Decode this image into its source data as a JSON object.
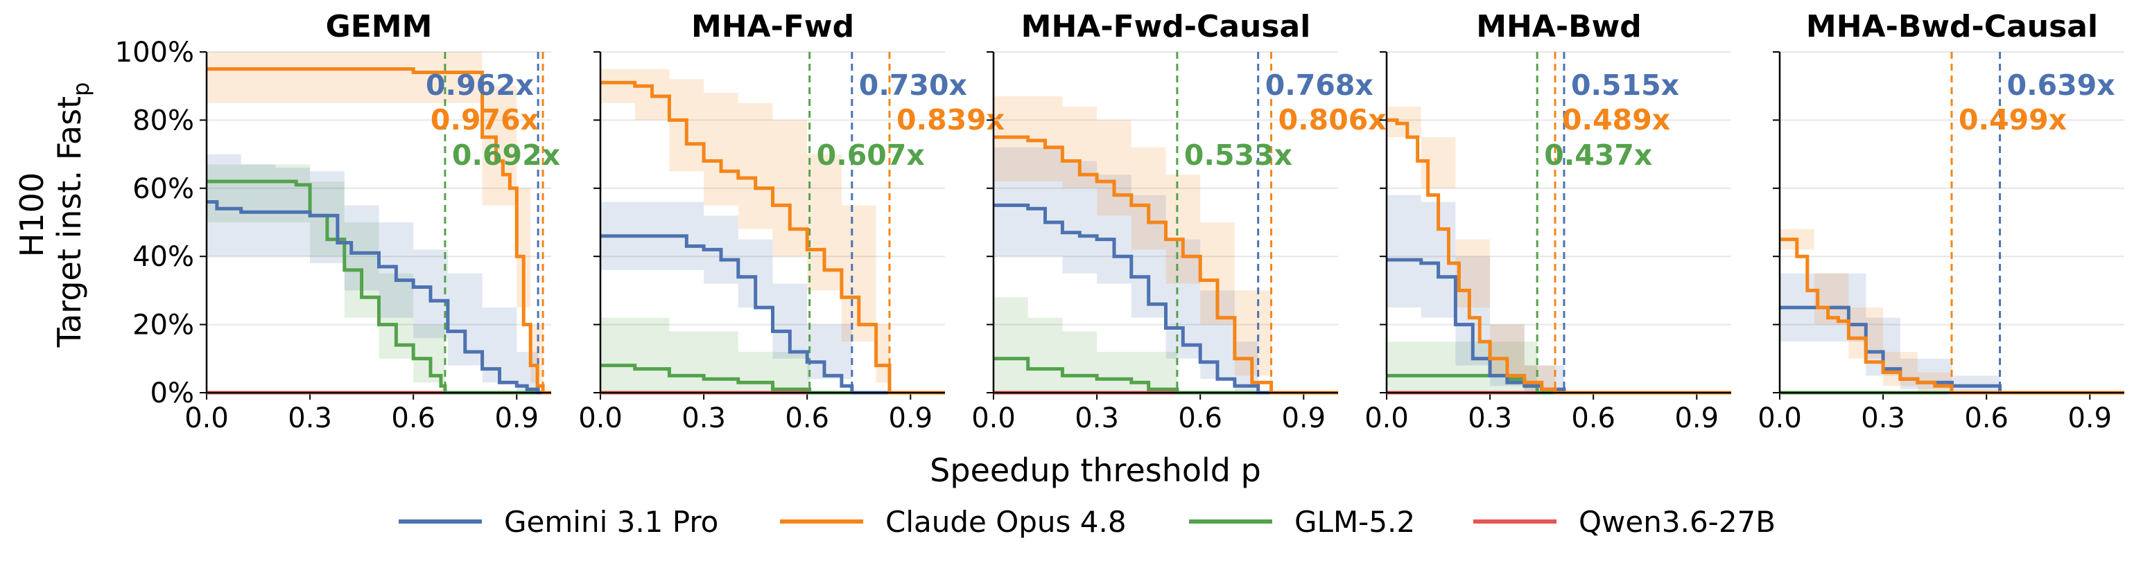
{
  "figure": {
    "ylabel_line1": "H100",
    "ylabel_line2_main": "Target inst. Fast",
    "ylabel_line2_sub": "p",
    "xlabel": "Speedup threshold p"
  },
  "series": [
    {
      "key": "gemini",
      "name": "Gemini 3.1 Pro",
      "color": "#4c72b0"
    },
    {
      "key": "claude",
      "name": "Claude Opus 4.8",
      "color": "#f58518"
    },
    {
      "key": "glm",
      "name": "GLM-5.2",
      "color": "#54a24b"
    },
    {
      "key": "qwen",
      "name": "Qwen3.6-27B",
      "color": "#e45756"
    }
  ],
  "chart_data": [
    {
      "type": "line",
      "title": "GEMM",
      "xlim": [
        0,
        1
      ],
      "ylim": [
        0,
        100
      ],
      "xticks": [
        "0.0",
        "0.3",
        "0.6",
        "0.9"
      ],
      "yticks": [
        "0%",
        "20%",
        "40%",
        "60%",
        "80%",
        "100%"
      ],
      "grid": "y",
      "thresholds": [
        {
          "series": "gemini",
          "x": 0.962,
          "label": "0.962x"
        },
        {
          "series": "claude",
          "x": 0.976,
          "label": "0.976x"
        },
        {
          "series": "glm",
          "x": 0.692,
          "label": "0.692x"
        }
      ],
      "lines": {
        "gemini": {
          "x": [
            0,
            0.03,
            0.1,
            0.2,
            0.3,
            0.38,
            0.42,
            0.5,
            0.55,
            0.6,
            0.65,
            0.7,
            0.75,
            0.8,
            0.85,
            0.9,
            0.93,
            0.962
          ],
          "y": [
            56,
            54,
            53,
            53,
            52,
            44,
            41,
            37,
            33,
            31,
            27,
            18,
            12,
            7,
            3,
            2,
            1,
            0
          ]
        },
        "claude": {
          "x": [
            0,
            0.6,
            0.8,
            0.84,
            0.86,
            0.88,
            0.9,
            0.92,
            0.94,
            0.96,
            0.976
          ],
          "y": [
            95,
            94,
            75,
            68,
            64,
            60,
            40,
            20,
            8,
            2,
            0
          ]
        },
        "glm": {
          "x": [
            0,
            0.26,
            0.3,
            0.35,
            0.4,
            0.45,
            0.5,
            0.55,
            0.6,
            0.65,
            0.68,
            0.692
          ],
          "y": [
            62,
            61,
            52,
            45,
            36,
            28,
            20,
            14,
            10,
            5,
            2,
            0
          ]
        },
        "qwen": {
          "x": [
            0,
            1
          ],
          "y": [
            0,
            0
          ]
        }
      },
      "bands": {
        "gemini": {
          "x": [
            0,
            0.1,
            0.2,
            0.3,
            0.4,
            0.5,
            0.6,
            0.7,
            0.8,
            0.9,
            0.962
          ],
          "low": [
            40,
            40,
            40,
            38,
            30,
            22,
            16,
            8,
            3,
            0,
            0
          ],
          "high": [
            70,
            67,
            66,
            65,
            55,
            50,
            42,
            35,
            25,
            12,
            2
          ]
        },
        "claude": {
          "x": [
            0,
            0.6,
            0.8,
            0.9,
            0.94,
            0.976
          ],
          "low": [
            85,
            85,
            55,
            25,
            3,
            0
          ],
          "high": [
            100,
            100,
            90,
            60,
            20,
            2
          ]
        },
        "glm": {
          "x": [
            0,
            0.26,
            0.3,
            0.4,
            0.5,
            0.6,
            0.692
          ],
          "low": [
            50,
            50,
            40,
            22,
            10,
            3,
            0
          ],
          "high": [
            67,
            67,
            62,
            50,
            35,
            20,
            2
          ]
        },
        "qwen": {
          "x": [
            0,
            1
          ],
          "low": [
            0,
            0
          ],
          "high": [
            0,
            0
          ]
        }
      }
    },
    {
      "type": "line",
      "title": "MHA-Fwd",
      "xlim": [
        0,
        1
      ],
      "ylim": [
        0,
        100
      ],
      "xticks": [
        "0.0",
        "0.3",
        "0.6",
        "0.9"
      ],
      "yticks": [
        "0%",
        "20%",
        "40%",
        "60%",
        "80%",
        "100%"
      ],
      "grid": "y",
      "thresholds": [
        {
          "series": "gemini",
          "x": 0.73,
          "label": "0.730x"
        },
        {
          "series": "claude",
          "x": 0.839,
          "label": "0.839x"
        },
        {
          "series": "glm",
          "x": 0.607,
          "label": "0.607x"
        }
      ],
      "lines": {
        "gemini": {
          "x": [
            0,
            0.15,
            0.25,
            0.3,
            0.35,
            0.4,
            0.45,
            0.5,
            0.55,
            0.6,
            0.65,
            0.7,
            0.73
          ],
          "y": [
            46,
            46,
            43,
            42,
            39,
            34,
            25,
            18,
            12,
            9,
            5,
            2,
            0
          ]
        },
        "claude": {
          "x": [
            0,
            0.1,
            0.15,
            0.2,
            0.25,
            0.3,
            0.35,
            0.4,
            0.45,
            0.5,
            0.55,
            0.6,
            0.65,
            0.7,
            0.75,
            0.8,
            0.839
          ],
          "y": [
            91,
            90,
            87,
            80,
            73,
            68,
            65,
            63,
            60,
            55,
            48,
            42,
            36,
            28,
            20,
            8,
            0
          ]
        },
        "glm": {
          "x": [
            0,
            0.1,
            0.2,
            0.3,
            0.4,
            0.5,
            0.607
          ],
          "y": [
            8,
            7,
            5,
            4,
            3,
            1,
            0
          ]
        },
        "qwen": {
          "x": [
            0,
            1
          ],
          "y": [
            0,
            0
          ]
        }
      },
      "bands": {
        "gemini": {
          "x": [
            0,
            0.2,
            0.3,
            0.4,
            0.5,
            0.6,
            0.73
          ],
          "low": [
            36,
            36,
            32,
            25,
            10,
            4,
            0
          ],
          "high": [
            56,
            56,
            52,
            45,
            32,
            20,
            3
          ]
        },
        "claude": {
          "x": [
            0,
            0.1,
            0.2,
            0.3,
            0.4,
            0.5,
            0.6,
            0.7,
            0.8,
            0.839
          ],
          "low": [
            85,
            80,
            65,
            55,
            48,
            40,
            30,
            15,
            3,
            0
          ],
          "high": [
            95,
            95,
            92,
            88,
            85,
            80,
            70,
            55,
            20,
            3
          ]
        },
        "glm": {
          "x": [
            0,
            0.2,
            0.4,
            0.607
          ],
          "low": [
            0,
            0,
            0,
            0
          ],
          "high": [
            22,
            18,
            12,
            3
          ]
        },
        "qwen": {
          "x": [
            0,
            1
          ],
          "low": [
            0,
            0
          ],
          "high": [
            0,
            0
          ]
        }
      }
    },
    {
      "type": "line",
      "title": "MHA-Fwd-Causal",
      "xlim": [
        0,
        1
      ],
      "ylim": [
        0,
        100
      ],
      "xticks": [
        "0.0",
        "0.3",
        "0.6",
        "0.9"
      ],
      "yticks": [
        "0%",
        "20%",
        "40%",
        "60%",
        "80%",
        "100%"
      ],
      "grid": "y",
      "thresholds": [
        {
          "series": "gemini",
          "x": 0.768,
          "label": "0.768x"
        },
        {
          "series": "claude",
          "x": 0.806,
          "label": "0.806x"
        },
        {
          "series": "glm",
          "x": 0.533,
          "label": "0.533x"
        }
      ],
      "lines": {
        "gemini": {
          "x": [
            0,
            0.1,
            0.15,
            0.2,
            0.25,
            0.3,
            0.35,
            0.4,
            0.45,
            0.5,
            0.55,
            0.6,
            0.65,
            0.7,
            0.768
          ],
          "y": [
            55,
            54,
            50,
            47,
            46,
            45,
            40,
            34,
            26,
            19,
            14,
            9,
            4,
            2,
            0
          ]
        },
        "claude": {
          "x": [
            0,
            0.1,
            0.15,
            0.2,
            0.25,
            0.3,
            0.35,
            0.4,
            0.45,
            0.5,
            0.55,
            0.6,
            0.65,
            0.7,
            0.75,
            0.806
          ],
          "y": [
            75,
            74,
            72,
            68,
            64,
            62,
            58,
            55,
            50,
            45,
            40,
            33,
            22,
            10,
            3,
            0
          ]
        },
        "glm": {
          "x": [
            0,
            0.07,
            0.1,
            0.2,
            0.3,
            0.4,
            0.45,
            0.533
          ],
          "y": [
            10,
            10,
            7,
            5,
            4,
            3,
            1,
            0
          ]
        },
        "qwen": {
          "x": [
            0,
            1
          ],
          "y": [
            0,
            0
          ]
        }
      },
      "bands": {
        "gemini": {
          "x": [
            0,
            0.2,
            0.3,
            0.4,
            0.5,
            0.6,
            0.7,
            0.768
          ],
          "low": [
            40,
            35,
            32,
            22,
            10,
            4,
            0,
            0
          ],
          "high": [
            72,
            68,
            64,
            58,
            45,
            30,
            15,
            3
          ]
        },
        "claude": {
          "x": [
            0,
            0.2,
            0.3,
            0.4,
            0.5,
            0.6,
            0.7,
            0.806
          ],
          "low": [
            62,
            60,
            52,
            42,
            32,
            20,
            5,
            0
          ],
          "high": [
            87,
            84,
            80,
            72,
            64,
            50,
            30,
            3
          ]
        },
        "glm": {
          "x": [
            0,
            0.1,
            0.2,
            0.3,
            0.533
          ],
          "low": [
            0,
            0,
            0,
            0,
            0
          ],
          "high": [
            28,
            22,
            18,
            12,
            2
          ]
        },
        "qwen": {
          "x": [
            0,
            1
          ],
          "low": [
            0,
            0
          ],
          "high": [
            0,
            0
          ]
        }
      }
    },
    {
      "type": "line",
      "title": "MHA-Bwd",
      "xlim": [
        0,
        1
      ],
      "ylim": [
        0,
        100
      ],
      "xticks": [
        "0.0",
        "0.3",
        "0.6",
        "0.9"
      ],
      "yticks": [
        "0%",
        "20%",
        "40%",
        "60%",
        "80%",
        "100%"
      ],
      "grid": "y",
      "thresholds": [
        {
          "series": "gemini",
          "x": 0.515,
          "label": "0.515x"
        },
        {
          "series": "claude",
          "x": 0.489,
          "label": "0.489x"
        },
        {
          "series": "glm",
          "x": 0.437,
          "label": "0.437x"
        }
      ],
      "lines": {
        "gemini": {
          "x": [
            0,
            0.1,
            0.15,
            0.2,
            0.25,
            0.3,
            0.35,
            0.4,
            0.45,
            0.515
          ],
          "y": [
            39,
            38,
            34,
            20,
            10,
            5,
            3,
            2,
            1,
            0
          ]
        },
        "claude": {
          "x": [
            0,
            0.03,
            0.06,
            0.09,
            0.12,
            0.15,
            0.18,
            0.21,
            0.24,
            0.27,
            0.3,
            0.35,
            0.4,
            0.45,
            0.489
          ],
          "y": [
            80,
            79,
            75,
            68,
            58,
            48,
            38,
            30,
            22,
            15,
            10,
            5,
            3,
            1,
            0
          ]
        },
        "glm": {
          "x": [
            0,
            0.3,
            0.35,
            0.4,
            0.437
          ],
          "y": [
            5,
            5,
            4,
            2,
            0
          ]
        },
        "qwen": {
          "x": [
            0,
            1
          ],
          "y": [
            0,
            0
          ]
        }
      },
      "bands": {
        "gemini": {
          "x": [
            0,
            0.1,
            0.2,
            0.3,
            0.4,
            0.515
          ],
          "low": [
            25,
            22,
            8,
            2,
            0,
            0
          ],
          "high": [
            58,
            56,
            40,
            20,
            8,
            2
          ]
        },
        "claude": {
          "x": [
            0,
            0.1,
            0.2,
            0.3,
            0.4,
            0.489
          ],
          "low": [
            75,
            60,
            25,
            5,
            1,
            0
          ],
          "high": [
            84,
            75,
            45,
            20,
            8,
            2
          ]
        },
        "glm": {
          "x": [
            0,
            0.3,
            0.437
          ],
          "low": [
            0,
            0,
            0
          ],
          "high": [
            15,
            15,
            3
          ]
        },
        "qwen": {
          "x": [
            0,
            1
          ],
          "low": [
            0,
            0
          ],
          "high": [
            0,
            0
          ]
        }
      }
    },
    {
      "type": "line",
      "title": "MHA-Bwd-Causal",
      "xlim": [
        0,
        1
      ],
      "ylim": [
        0,
        100
      ],
      "xticks": [
        "0.0",
        "0.3",
        "0.6",
        "0.9"
      ],
      "yticks": [
        "0%",
        "20%",
        "40%",
        "60%",
        "80%",
        "100%"
      ],
      "grid": "y",
      "thresholds": [
        {
          "series": "gemini",
          "x": 0.639,
          "label": "0.639x"
        },
        {
          "series": "claude",
          "x": 0.499,
          "label": "0.499x"
        }
      ],
      "lines": {
        "gemini": {
          "x": [
            0,
            0.15,
            0.2,
            0.25,
            0.3,
            0.35,
            0.4,
            0.5,
            0.639
          ],
          "y": [
            25,
            25,
            20,
            12,
            7,
            4,
            3,
            2,
            0
          ]
        },
        "claude": {
          "x": [
            0,
            0.02,
            0.05,
            0.08,
            0.11,
            0.14,
            0.17,
            0.2,
            0.25,
            0.3,
            0.35,
            0.4,
            0.45,
            0.499
          ],
          "y": [
            45,
            45,
            40,
            30,
            25,
            22,
            21,
            16,
            9,
            6,
            4,
            3,
            2,
            0
          ]
        },
        "glm": {
          "x": [
            0,
            1
          ],
          "y": [
            0,
            0
          ]
        },
        "qwen": {
          "x": [
            0,
            1
          ],
          "y": [
            0,
            0
          ]
        }
      },
      "bands": {
        "gemini": {
          "x": [
            0,
            0.15,
            0.25,
            0.35,
            0.5,
            0.639
          ],
          "low": [
            15,
            15,
            5,
            1,
            0,
            0
          ],
          "high": [
            35,
            35,
            22,
            10,
            5,
            2
          ]
        },
        "claude": {
          "x": [
            0,
            0.1,
            0.2,
            0.3,
            0.4,
            0.499
          ],
          "low": [
            42,
            20,
            10,
            2,
            0,
            0
          ],
          "high": [
            48,
            35,
            25,
            12,
            6,
            2
          ]
        },
        "glm": {
          "x": [
            0,
            1
          ],
          "low": [
            0,
            0
          ],
          "high": [
            0,
            0
          ]
        },
        "qwen": {
          "x": [
            0,
            1
          ],
          "low": [
            0,
            0
          ],
          "high": [
            0,
            0
          ]
        }
      }
    }
  ]
}
